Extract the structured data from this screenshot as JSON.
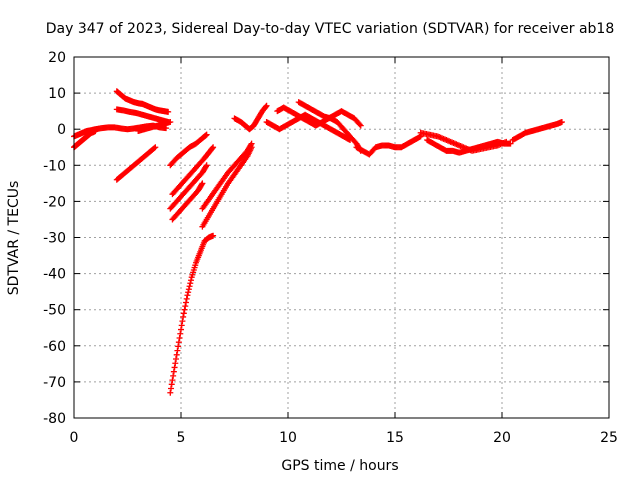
{
  "chart_data": {
    "type": "scatter",
    "title": "Day 347 of 2023, Sidereal Day-to-day VTEC variation (SDTVAR) for receiver ab18",
    "xlabel": "GPS time / hours",
    "ylabel": "SDTVAR / TECUs",
    "xlim": [
      0,
      25
    ],
    "ylim": [
      -80,
      20
    ],
    "xticks": [
      0,
      5,
      10,
      15,
      20,
      25
    ],
    "yticks": [
      -80,
      -70,
      -60,
      -50,
      -40,
      -30,
      -20,
      -10,
      0,
      10,
      20
    ],
    "grid": true,
    "marker": "+",
    "color": "#ff0000",
    "series": [
      {
        "name": "arc-early-flat",
        "points": [
          [
            0,
            -2
          ],
          [
            0.2,
            -1.5
          ],
          [
            0.4,
            -1
          ],
          [
            0.6,
            -0.5
          ],
          [
            0.8,
            -0.3
          ],
          [
            1.0,
            0
          ],
          [
            1.3,
            0.3
          ],
          [
            1.6,
            0.5
          ],
          [
            1.9,
            0.5
          ],
          [
            2.2,
            0.2
          ],
          [
            2.5,
            0
          ],
          [
            2.8,
            0.2
          ],
          [
            3.1,
            0.5
          ],
          [
            3.4,
            0.8
          ],
          [
            3.7,
            1.0
          ],
          [
            4.0,
            0.5
          ],
          [
            4.3,
            0.3
          ]
        ]
      },
      {
        "name": "arc-early-low",
        "points": [
          [
            0,
            -5
          ],
          [
            0.1,
            -4.5
          ],
          [
            0.2,
            -4
          ],
          [
            0.3,
            -3.5
          ],
          [
            0.4,
            -3
          ],
          [
            0.5,
            -2.5
          ],
          [
            0.6,
            -2
          ],
          [
            0.7,
            -1.5
          ],
          [
            0.8,
            -1
          ],
          [
            0.9,
            -0.8
          ],
          [
            1.0,
            -0.5
          ]
        ]
      },
      {
        "name": "arc-2h-high",
        "points": [
          [
            2.0,
            10.5
          ],
          [
            2.2,
            9.5
          ],
          [
            2.4,
            8.5
          ],
          [
            2.6,
            8.0
          ],
          [
            2.8,
            7.5
          ],
          [
            3.0,
            7.2
          ],
          [
            3.2,
            7.0
          ],
          [
            3.4,
            6.5
          ],
          [
            3.6,
            6.0
          ],
          [
            3.8,
            5.5
          ],
          [
            4.0,
            5.2
          ],
          [
            4.2,
            5.0
          ],
          [
            4.4,
            4.8
          ]
        ]
      },
      {
        "name": "arc-2h-mid",
        "points": [
          [
            2.0,
            5.5
          ],
          [
            2.3,
            5.2
          ],
          [
            2.6,
            4.8
          ],
          [
            2.9,
            4.5
          ],
          [
            3.2,
            4.0
          ],
          [
            3.5,
            3.5
          ],
          [
            3.8,
            3.0
          ],
          [
            4.1,
            2.5
          ],
          [
            4.4,
            2.0
          ]
        ]
      },
      {
        "name": "arc-2h-down",
        "points": [
          [
            2.0,
            -14
          ],
          [
            2.3,
            -12.5
          ],
          [
            2.6,
            -11
          ],
          [
            2.9,
            -9.5
          ],
          [
            3.2,
            -8
          ],
          [
            3.5,
            -6.5
          ],
          [
            3.8,
            -5
          ]
        ]
      },
      {
        "name": "arc-4h-lowmid",
        "points": [
          [
            3.0,
            -0.5
          ],
          [
            3.3,
            0
          ],
          [
            3.6,
            0.5
          ],
          [
            3.9,
            1.0
          ],
          [
            4.2,
            1.5
          ],
          [
            4.5,
            2.0
          ]
        ]
      },
      {
        "name": "arc-4h-a",
        "points": [
          [
            4.5,
            -10
          ],
          [
            4.8,
            -8
          ],
          [
            5.1,
            -6.5
          ],
          [
            5.4,
            -5
          ],
          [
            5.7,
            -4
          ],
          [
            6.0,
            -2.5
          ],
          [
            6.2,
            -1.5
          ]
        ]
      },
      {
        "name": "arc-4h-b",
        "points": [
          [
            4.6,
            -18
          ],
          [
            4.9,
            -16
          ],
          [
            5.2,
            -14
          ],
          [
            5.5,
            -12
          ],
          [
            5.8,
            -10
          ],
          [
            6.1,
            -8
          ],
          [
            6.3,
            -6.5
          ],
          [
            6.5,
            -5
          ]
        ]
      },
      {
        "name": "arc-4h-c",
        "points": [
          [
            4.5,
            -22
          ],
          [
            4.8,
            -20
          ],
          [
            5.1,
            -18
          ],
          [
            5.4,
            -16
          ],
          [
            5.7,
            -14
          ],
          [
            6.0,
            -12
          ],
          [
            6.2,
            -10
          ]
        ]
      },
      {
        "name": "arc-4h-d",
        "points": [
          [
            4.6,
            -25
          ],
          [
            4.9,
            -23
          ],
          [
            5.2,
            -21
          ],
          [
            5.5,
            -19
          ],
          [
            5.8,
            -17
          ],
          [
            6.0,
            -15
          ]
        ]
      },
      {
        "name": "arc-deep-dip",
        "points": [
          [
            4.5,
            -73
          ],
          [
            4.7,
            -66
          ],
          [
            4.9,
            -59
          ],
          [
            5.1,
            -52
          ],
          [
            5.3,
            -46
          ],
          [
            5.5,
            -41
          ],
          [
            5.7,
            -37
          ],
          [
            5.9,
            -34
          ],
          [
            6.1,
            -31
          ],
          [
            6.3,
            -30
          ],
          [
            6.5,
            -29.5
          ]
        ]
      },
      {
        "name": "arc-6h-a",
        "points": [
          [
            6.0,
            -27
          ],
          [
            6.3,
            -24
          ],
          [
            6.6,
            -21
          ],
          [
            6.9,
            -18
          ],
          [
            7.2,
            -15
          ],
          [
            7.5,
            -12.5
          ],
          [
            7.8,
            -10
          ],
          [
            8.1,
            -7.5
          ],
          [
            8.3,
            -5
          ]
        ]
      },
      {
        "name": "arc-6h-b",
        "points": [
          [
            6.0,
            -22
          ],
          [
            6.3,
            -19.5
          ],
          [
            6.6,
            -17
          ],
          [
            6.9,
            -14.5
          ],
          [
            7.2,
            -12
          ],
          [
            7.5,
            -10
          ],
          [
            7.8,
            -8
          ],
          [
            8.1,
            -6
          ],
          [
            8.3,
            -4
          ]
        ]
      },
      {
        "name": "arc-7h-rise",
        "points": [
          [
            7.5,
            3
          ],
          [
            7.8,
            2
          ],
          [
            8.0,
            1
          ],
          [
            8.2,
            0
          ],
          [
            8.4,
            1
          ],
          [
            8.6,
            3
          ],
          [
            8.8,
            5
          ],
          [
            9.0,
            6.5
          ]
        ]
      },
      {
        "name": "arc-9-13h",
        "points": [
          [
            9.0,
            2
          ],
          [
            9.3,
            1
          ],
          [
            9.6,
            0
          ],
          [
            9.9,
            1
          ],
          [
            10.2,
            2
          ],
          [
            10.5,
            3
          ],
          [
            10.8,
            4
          ],
          [
            11.1,
            3
          ],
          [
            11.4,
            2
          ],
          [
            11.7,
            1
          ],
          [
            12.0,
            0
          ],
          [
            12.3,
            -1
          ],
          [
            12.6,
            -2
          ],
          [
            12.9,
            -3
          ]
        ]
      },
      {
        "name": "arc-10-13h",
        "points": [
          [
            9.5,
            5
          ],
          [
            9.8,
            6
          ],
          [
            10.1,
            5
          ],
          [
            10.4,
            4
          ],
          [
            10.7,
            3
          ],
          [
            11.0,
            2
          ],
          [
            11.3,
            1
          ],
          [
            11.6,
            2
          ],
          [
            11.9,
            3
          ],
          [
            12.2,
            4
          ],
          [
            12.5,
            5
          ],
          [
            12.8,
            4
          ],
          [
            13.1,
            3
          ],
          [
            13.4,
            1
          ]
        ]
      },
      {
        "name": "arc-11-13h",
        "points": [
          [
            10.5,
            7.5
          ],
          [
            10.8,
            6.5
          ],
          [
            11.1,
            5.5
          ],
          [
            11.4,
            4.5
          ],
          [
            11.7,
            3.5
          ],
          [
            12.0,
            3
          ],
          [
            12.3,
            2
          ],
          [
            12.6,
            0
          ],
          [
            12.9,
            -2
          ],
          [
            13.2,
            -4
          ],
          [
            13.4,
            -6
          ]
        ]
      },
      {
        "name": "arc-13-16h",
        "points": [
          [
            13.2,
            -5
          ],
          [
            13.5,
            -6
          ],
          [
            13.8,
            -7
          ],
          [
            14.1,
            -5
          ],
          [
            14.4,
            -4.5
          ],
          [
            14.7,
            -4.5
          ],
          [
            15.0,
            -5
          ],
          [
            15.3,
            -5
          ],
          [
            15.6,
            -4
          ],
          [
            15.9,
            -3
          ],
          [
            16.2,
            -2
          ]
        ]
      },
      {
        "name": "arc-16-20h",
        "points": [
          [
            16.5,
            -3
          ],
          [
            16.8,
            -4
          ],
          [
            17.1,
            -5
          ],
          [
            17.4,
            -6
          ],
          [
            17.7,
            -6
          ],
          [
            18.0,
            -6.5
          ],
          [
            18.3,
            -6
          ],
          [
            18.6,
            -5.5
          ],
          [
            18.9,
            -5
          ],
          [
            19.2,
            -4.5
          ],
          [
            19.5,
            -4
          ],
          [
            19.8,
            -3.5
          ],
          [
            20.1,
            -4
          ],
          [
            20.4,
            -4
          ]
        ]
      },
      {
        "name": "arc-16-20h-b",
        "points": [
          [
            16.2,
            -1
          ],
          [
            16.6,
            -1.5
          ],
          [
            17.0,
            -2
          ],
          [
            17.4,
            -3
          ],
          [
            17.8,
            -4
          ],
          [
            18.2,
            -5
          ],
          [
            18.6,
            -6
          ],
          [
            19.0,
            -5.5
          ],
          [
            19.4,
            -5
          ],
          [
            19.8,
            -4.5
          ],
          [
            20.2,
            -3.5
          ]
        ]
      },
      {
        "name": "arc-20-23h",
        "points": [
          [
            20.5,
            -3
          ],
          [
            20.8,
            -2
          ],
          [
            21.1,
            -1
          ],
          [
            21.4,
            -0.5
          ],
          [
            21.7,
            0
          ],
          [
            22.0,
            0.5
          ],
          [
            22.3,
            1
          ],
          [
            22.6,
            1.5
          ],
          [
            22.8,
            2
          ]
        ]
      }
    ]
  }
}
